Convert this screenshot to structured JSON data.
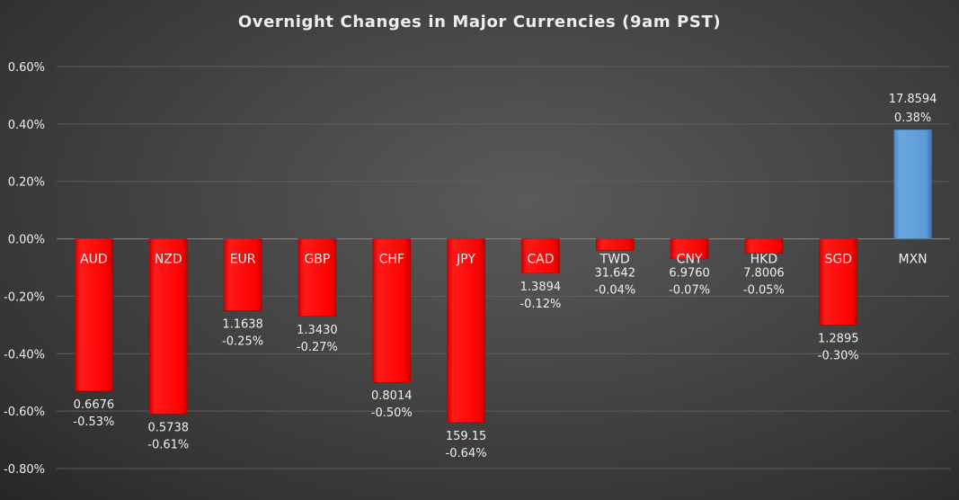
{
  "chart_data": {
    "type": "bar",
    "title": "Overnight Changes in Major Currencies (9am PST)",
    "categories": [
      "AUD",
      "NZD",
      "EUR",
      "GBP",
      "CHF",
      "JPY",
      "CAD",
      "TWD",
      "CNY",
      "HKD",
      "SGD",
      "MXN"
    ],
    "values": [
      -0.53,
      -0.61,
      -0.25,
      -0.27,
      -0.5,
      -0.64,
      -0.12,
      -0.04,
      -0.07,
      -0.05,
      -0.3,
      0.38
    ],
    "rates": [
      "0.6676",
      "0.5738",
      "1.1638",
      "1.3430",
      "0.8014",
      "159.15",
      "1.3894",
      "31.642",
      "6.9760",
      "7.8006",
      "1.2895",
      "17.8594"
    ],
    "pct_labels": [
      "-0.53%",
      "-0.61%",
      "-0.25%",
      "-0.27%",
      "-0.50%",
      "-0.64%",
      "-0.12%",
      "-0.04%",
      "-0.07%",
      "-0.05%",
      "-0.30%",
      "0.38%"
    ],
    "ylim": [
      -0.8,
      0.6
    ],
    "yticks": [
      "0.60%",
      "0.40%",
      "0.20%",
      "0.00%",
      "-0.20%",
      "-0.40%",
      "-0.60%",
      "-0.80%"
    ],
    "ytick_values": [
      0.6,
      0.4,
      0.2,
      0,
      -0.2,
      -0.4,
      -0.6,
      -0.8
    ],
    "grid": true,
    "xlabel": "",
    "ylabel": "",
    "colors": {
      "negative": "#ff0000",
      "positive": "#5b9bd5"
    }
  }
}
